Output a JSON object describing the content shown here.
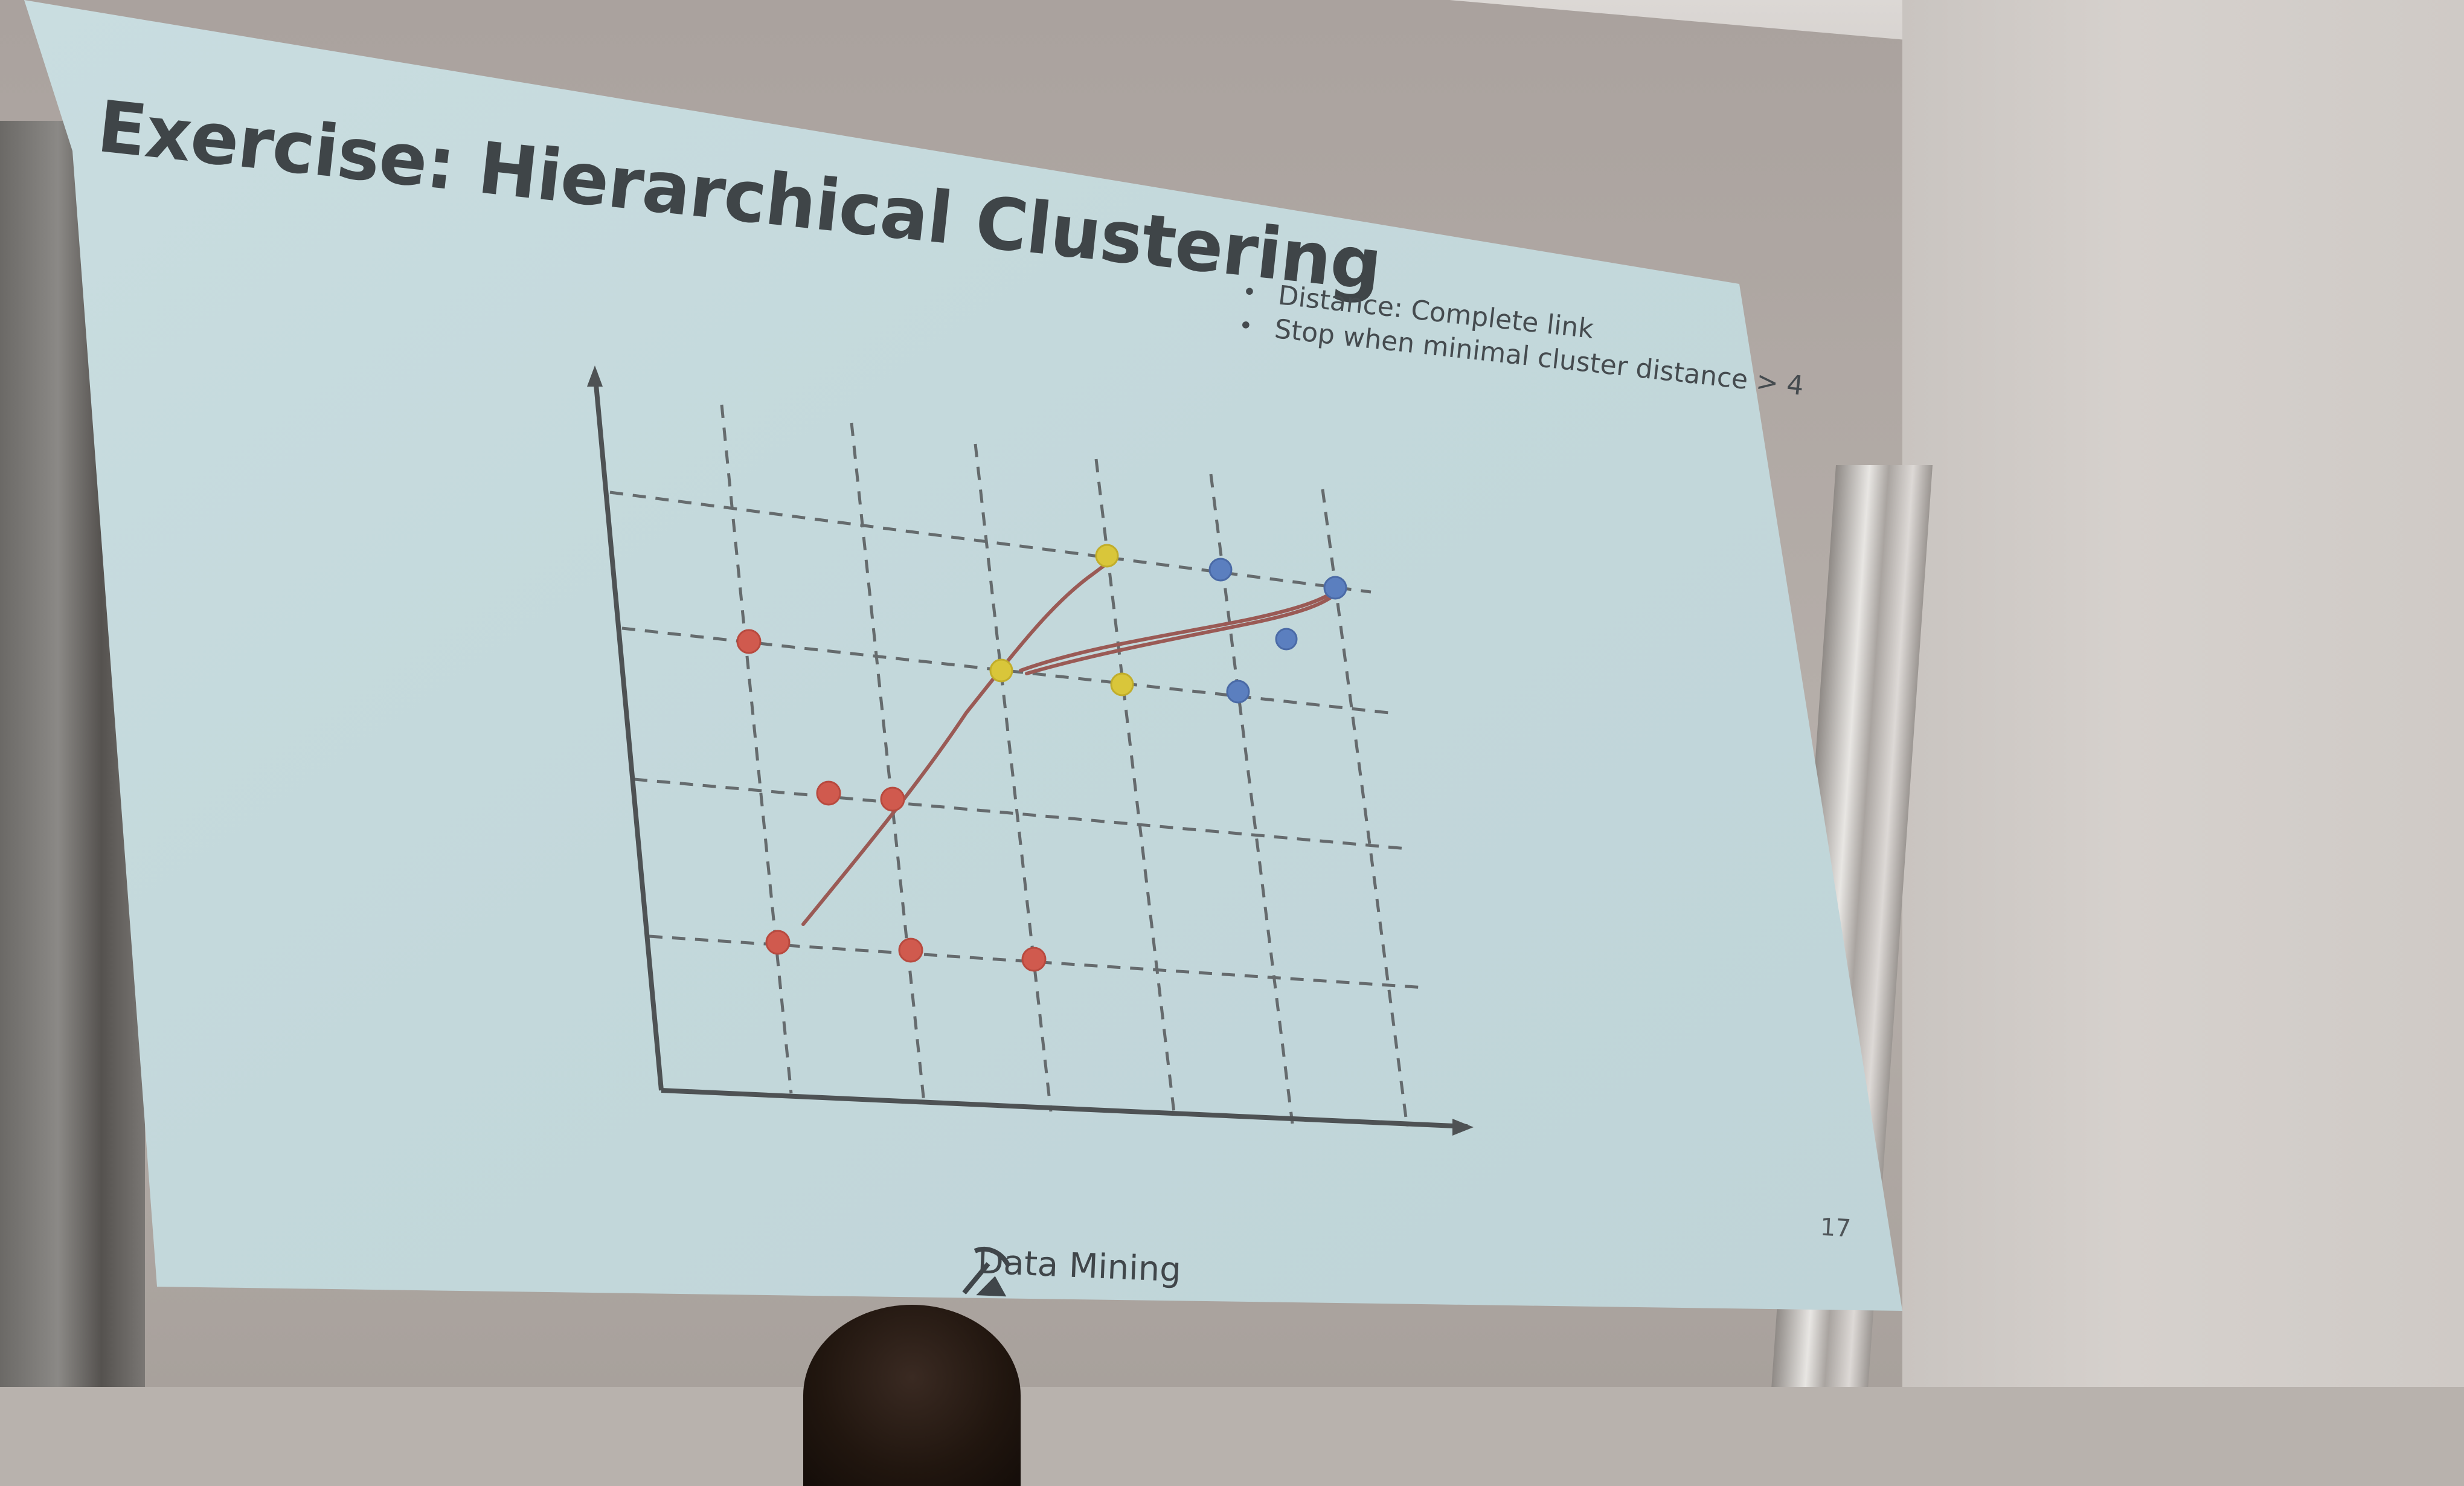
{
  "slide": {
    "title": "Exercise: Hierarchical Clustering",
    "bullets": [
      "Distance: Complete link",
      "Stop when minimal cluster distance > 4"
    ],
    "page_number": "17",
    "footer_text": "Data Mining",
    "footer_logo": "pickaxe-icon"
  },
  "colors": {
    "slide_bg": "#c6dadd",
    "red": "#d05a4e",
    "yellow": "#d9c63a",
    "blue": "#5b7fbf",
    "annotation": "#9a5a55",
    "grid": "#55585a"
  }
}
